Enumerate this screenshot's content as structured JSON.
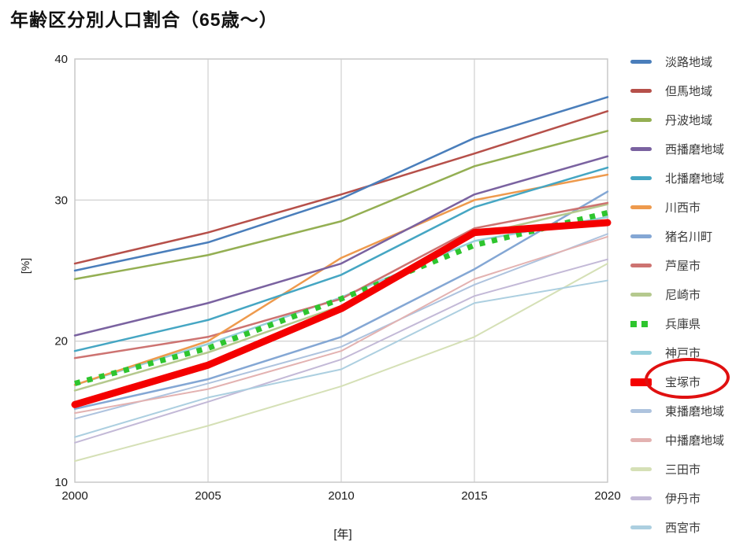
{
  "title": "年齢区分別人口割合（65歳〜）",
  "axes": {
    "x": {
      "title": "[年]",
      "min": 2000,
      "max": 2020,
      "ticks": [
        2000,
        2005,
        2010,
        2015,
        2020
      ]
    },
    "y": {
      "title": "[%]",
      "min": 10,
      "max": 40,
      "ticks": [
        10,
        20,
        30,
        40
      ]
    }
  },
  "colors": {
    "grid": "#d4d4d4",
    "plot_border": "#c9c9c9",
    "tick_text": "#1a1a1a",
    "legend_text": "#3a3a3a",
    "annotation_red": "#e01010"
  },
  "annotation": {
    "type": "ellipse",
    "target_series": "宝塚市"
  },
  "chart_data": {
    "type": "line",
    "x": [
      2000,
      2005,
      2010,
      2015,
      2020
    ],
    "xlabel": "[年]",
    "ylabel": "[%]",
    "ylim": [
      10,
      40
    ],
    "legend_position": "right",
    "grid": true,
    "series": [
      {
        "name": "淡路地域",
        "color": "#4a7ebb",
        "width": 2.5,
        "dash": null,
        "values": [
          25.0,
          27.0,
          30.1,
          34.4,
          37.3
        ]
      },
      {
        "name": "但馬地域",
        "color": "#b6504a",
        "width": 2.5,
        "dash": null,
        "values": [
          25.5,
          27.7,
          30.4,
          33.3,
          36.3
        ]
      },
      {
        "name": "丹波地域",
        "color": "#94af53",
        "width": 2.5,
        "dash": null,
        "values": [
          24.4,
          26.1,
          28.5,
          32.4,
          34.9
        ]
      },
      {
        "name": "西播磨地域",
        "color": "#7a62a0",
        "width": 2.5,
        "dash": null,
        "values": [
          20.4,
          22.7,
          25.5,
          30.4,
          33.1
        ]
      },
      {
        "name": "北播磨地域",
        "color": "#45a6c3",
        "width": 2.5,
        "dash": null,
        "values": [
          19.3,
          21.5,
          24.7,
          29.5,
          32.3
        ]
      },
      {
        "name": "川西市",
        "color": "#ee9a4d",
        "width": 2.5,
        "dash": null,
        "values": [
          16.9,
          20.0,
          25.9,
          30.0,
          31.8
        ]
      },
      {
        "name": "猪名川町",
        "color": "#84a7d4",
        "width": 2.5,
        "dash": null,
        "values": [
          15.2,
          17.3,
          20.3,
          25.1,
          30.6
        ]
      },
      {
        "name": "芦屋市",
        "color": "#cd7371",
        "width": 2.5,
        "dash": null,
        "values": [
          18.8,
          20.3,
          23.0,
          28.0,
          29.8
        ]
      },
      {
        "name": "尼崎市",
        "color": "#b5c98e",
        "width": 2.5,
        "dash": null,
        "values": [
          16.5,
          19.2,
          22.5,
          27.5,
          29.7
        ]
      },
      {
        "name": "兵庫県",
        "color": "#2ec52e",
        "width": 7,
        "dash": "7 9",
        "values": [
          17.0,
          19.5,
          23.0,
          26.8,
          29.1
        ]
      },
      {
        "name": "神戸市",
        "color": "#96cfdc",
        "width": 2.5,
        "dash": null,
        "values": [
          16.9,
          19.8,
          23.1,
          27.1,
          28.8
        ]
      },
      {
        "name": "宝塚市",
        "color": "#f40000",
        "width": 9,
        "dash": null,
        "values": [
          15.5,
          18.3,
          22.3,
          27.7,
          28.4
        ]
      },
      {
        "name": "東播磨地域",
        "color": "#aec3de",
        "width": 2,
        "dash": null,
        "values": [
          14.5,
          17.0,
          19.6,
          24.0,
          27.6
        ]
      },
      {
        "name": "中播磨地域",
        "color": "#e3b2b1",
        "width": 2,
        "dash": null,
        "values": [
          14.9,
          16.6,
          19.3,
          24.4,
          27.4
        ]
      },
      {
        "name": "三田市",
        "color": "#d5e0b6",
        "width": 2,
        "dash": null,
        "values": [
          11.5,
          14.0,
          16.8,
          20.3,
          25.5
        ]
      },
      {
        "name": "伊丹市",
        "color": "#c3b9d7",
        "width": 2,
        "dash": null,
        "values": [
          12.8,
          15.7,
          18.7,
          23.2,
          25.8
        ]
      },
      {
        "name": "西宮市",
        "color": "#accfe0",
        "width": 2,
        "dash": null,
        "values": [
          13.2,
          16.0,
          18.0,
          22.7,
          24.3
        ]
      }
    ],
    "draw_order": [
      12,
      13,
      14,
      15,
      16,
      6,
      10,
      8,
      7,
      5,
      4,
      3,
      2,
      1,
      0,
      9,
      11
    ]
  }
}
